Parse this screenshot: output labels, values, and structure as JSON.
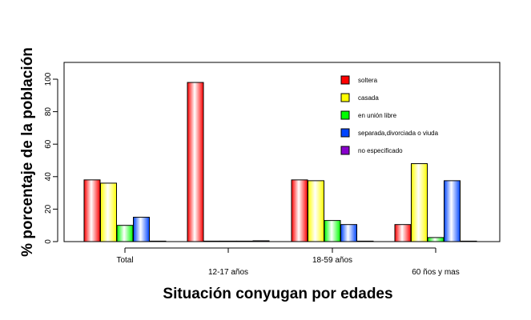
{
  "chart_data": {
    "type": "bar",
    "title": "",
    "xlabel": "Situación conyugan por edades",
    "ylabel": "% porcentaje de la población",
    "ylim": [
      0,
      108
    ],
    "yticks": [
      0,
      20,
      40,
      60,
      80,
      100
    ],
    "grid": false,
    "legend_position": "top-right",
    "categories": [
      "Total",
      "12-17 años",
      "18-59 años",
      "60 ños y mas"
    ],
    "series": [
      {
        "name": "soltera",
        "color": "#ff0000",
        "values": [
          38,
          98,
          38,
          10.5
        ]
      },
      {
        "name": "casada",
        "color": "#ffff00",
        "values": [
          36,
          0,
          37.5,
          48
        ]
      },
      {
        "name": "en unión libre",
        "color": "#00ff00",
        "values": [
          10,
          0,
          13,
          2.5
        ]
      },
      {
        "name": "separada,divorciada o viuda",
        "color": "#0044ff",
        "values": [
          15,
          0,
          10.5,
          37.5
        ]
      },
      {
        "name": "no especificado",
        "color": "#8800cc",
        "values": [
          0.2,
          0.5,
          0.2,
          0.2
        ]
      }
    ]
  }
}
